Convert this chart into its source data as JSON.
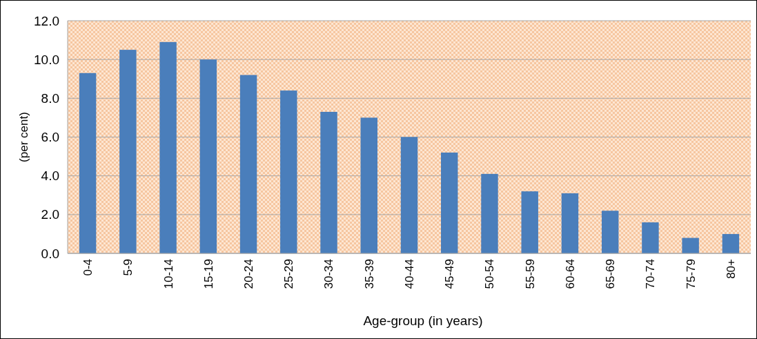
{
  "chart_data": {
    "type": "bar",
    "xlabel": "Age-group (in years)",
    "ylabel": "(per cent)",
    "categories": [
      "0-4",
      "5-9",
      "10-14",
      "15-19",
      "20-24",
      "25-29",
      "30-34",
      "35-39",
      "40-44",
      "45-49",
      "50-54",
      "55-59",
      "60-64",
      "65-69",
      "70-74",
      "75-79",
      "80+"
    ],
    "values": [
      9.3,
      10.5,
      10.9,
      10.0,
      9.2,
      8.4,
      7.3,
      7.0,
      6.0,
      5.2,
      4.1,
      3.2,
      3.1,
      2.2,
      1.6,
      0.8,
      1.0
    ],
    "color": "#4a7ebb",
    "ylim": [
      0,
      12
    ],
    "yticks": [
      {
        "value": 0,
        "label": "0.0"
      },
      {
        "value": 2,
        "label": "2.0"
      },
      {
        "value": 4,
        "label": "4.0"
      },
      {
        "value": 6,
        "label": "6.0"
      },
      {
        "value": 8,
        "label": "8.0"
      },
      {
        "value": 10,
        "label": "10.0"
      },
      {
        "value": 12,
        "label": "12.0"
      }
    ],
    "grid": "y"
  }
}
